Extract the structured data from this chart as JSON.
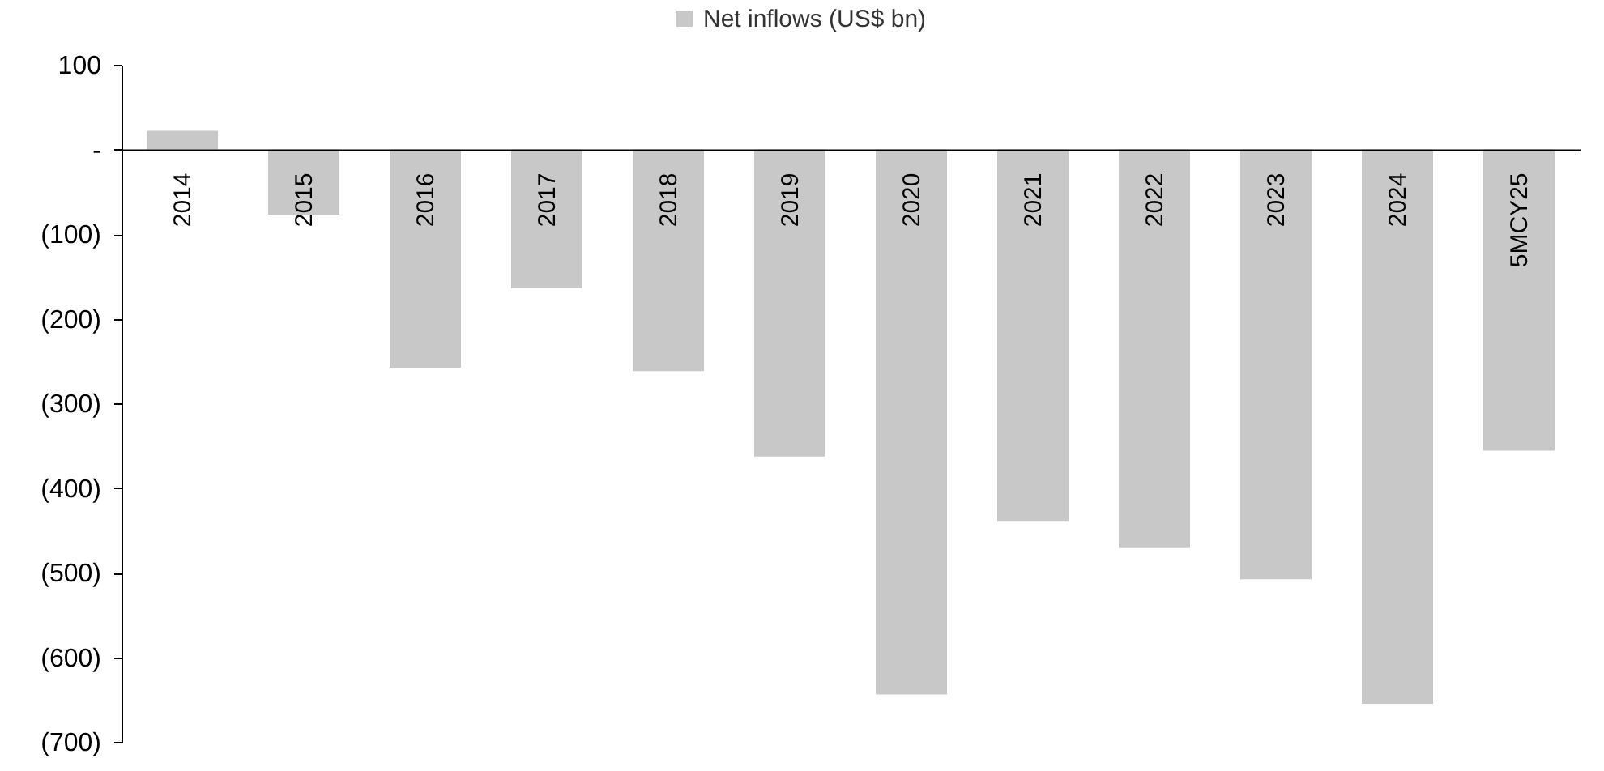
{
  "chart_data": {
    "type": "bar",
    "categories": [
      "2014",
      "2015",
      "2016",
      "2017",
      "2018",
      "2019",
      "2020",
      "2021",
      "2022",
      "2023",
      "2024",
      "5MCY25"
    ],
    "series": [
      {
        "name": "Net inflows (US$ bn)",
        "color": "#c8c8c8",
        "values": [
          22,
          -77,
          -258,
          -164,
          -262,
          -363,
          -644,
          -439,
          -471,
          -508,
          -655,
          -356
        ]
      }
    ],
    "ylim": [
      -700,
      100
    ],
    "yticks": [
      100,
      {
        "value": 0,
        "label": "-"
      },
      {
        "value": -100,
        "label": "(100)"
      },
      {
        "value": -200,
        "label": "(200)"
      },
      {
        "value": -300,
        "label": "(300)"
      },
      {
        "value": -400,
        "label": "(400)"
      },
      {
        "value": -500,
        "label": "(500)"
      },
      {
        "value": -600,
        "label": "(600)"
      },
      {
        "value": -700,
        "label": "(700)"
      }
    ],
    "grid": false,
    "legend": "top"
  }
}
